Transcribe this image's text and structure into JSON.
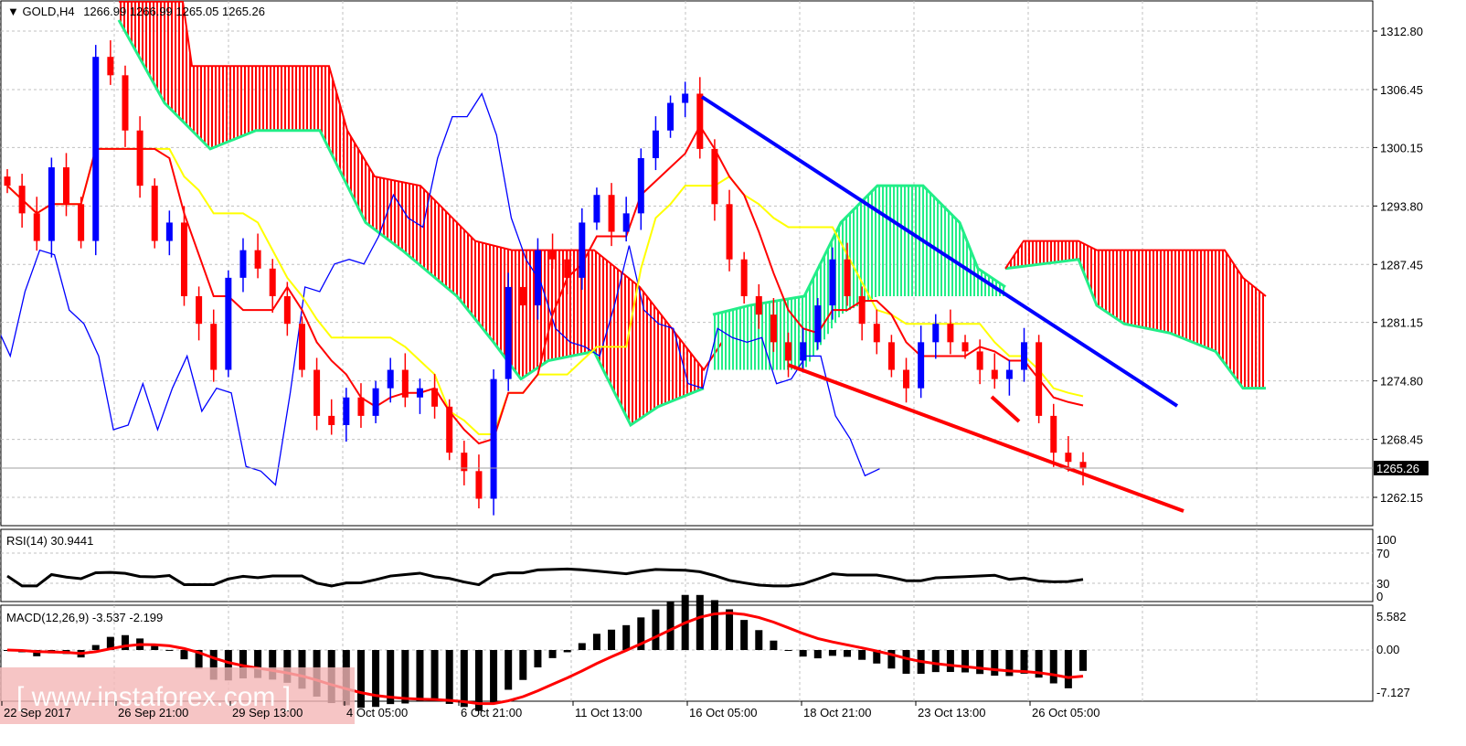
{
  "header": {
    "symbol": "GOLD,H4",
    "ohlc": "1266.99 1266.99 1265.05 1265.26"
  },
  "colors": {
    "bull_candle": "#0000ff",
    "bear_candle": "#ff0000",
    "tenkan": "#ff0000",
    "kijun": "#ffff00",
    "chikou": "#0000ff",
    "kumo_bull_edge": "#22ee88",
    "kumo_bear_fill": "#ff0000",
    "trendline_upper": "#0000ff",
    "trendline_lower": "#ff0000",
    "rsi_line": "#000000",
    "macd_hist": "#000000",
    "macd_signal": "#ff0000",
    "watermark": "#f2a0a0"
  },
  "price_pane": {
    "current_price": "1265.26",
    "price_axis": [
      "1312.80",
      "1306.45",
      "1300.15",
      "1293.80",
      "1287.45",
      "1281.15",
      "1274.80",
      "1268.45",
      "1262.15"
    ]
  },
  "rsi_pane": {
    "title": "RSI(14) 30.9441",
    "axis": [
      "100",
      "70",
      "30",
      "0"
    ]
  },
  "macd_pane": {
    "title": "MACD(12,26,9) -3.537 -2.199",
    "axis": [
      "5.582",
      "0.00",
      "-7.127"
    ]
  },
  "time_axis": [
    "22 Sep 2017",
    "26 Sep 21:00",
    "29 Sep 13:00",
    "4 Oct 05:00",
    "6 Oct 21:00",
    "11 Oct 13:00",
    "16 Oct 05:00",
    "18 Oct 21:00",
    "23 Oct 13:00",
    "26 Oct 05:00"
  ],
  "watermark": "[ www.instaforex.com ]",
  "chart_data": {
    "type": "candlestick",
    "title": "GOLD,H4",
    "ylim": [
      1258,
      1316
    ],
    "close_path": [
      1296,
      1293,
      1290,
      1298,
      1294,
      1290,
      1310,
      1308,
      1302,
      1296,
      1290,
      1292,
      1284,
      1281,
      1276,
      1286,
      1289,
      1287,
      1284,
      1281,
      1276,
      1271,
      1270,
      1273,
      1271,
      1274,
      1276,
      1273,
      1274,
      1272,
      1267,
      1265,
      1262,
      1275,
      1285,
      1283,
      1289,
      1288,
      1286,
      1292,
      1295,
      1291,
      1293,
      1299,
      1302,
      1305,
      1306,
      1300,
      1294,
      1288,
      1284,
      1282,
      1279,
      1277,
      1279,
      1283,
      1288,
      1284,
      1281,
      1279,
      1276,
      1274,
      1279,
      1281,
      1279,
      1278,
      1276,
      1275,
      1276,
      1279,
      1271,
      1267,
      1266,
      1265.26
    ],
    "series_labels": [
      "Tenkan",
      "Kijun",
      "Chikou",
      "Kumo"
    ],
    "trendlines": [
      {
        "name": "resistance",
        "from_price": 1306.5,
        "to_price": 1272
      },
      {
        "name": "support",
        "from_price": 1277,
        "to_price": 1262
      }
    ],
    "rsi_value": 30.9441,
    "macd": {
      "value": -3.537,
      "signal": -2.199
    }
  }
}
